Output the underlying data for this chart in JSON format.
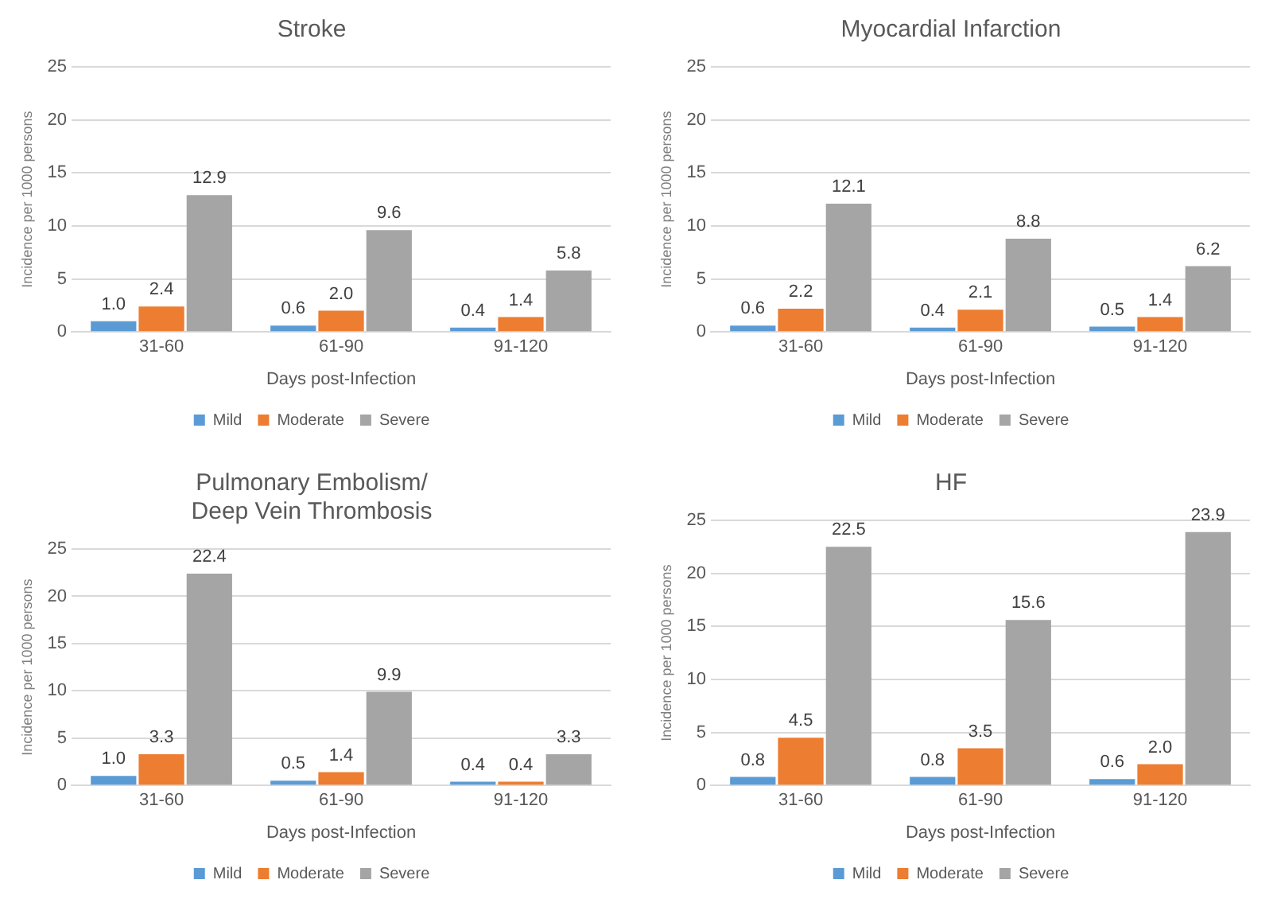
{
  "chart_data": [
    {
      "type": "bar",
      "title": "Stroke",
      "xlabel": "Days post-Infection",
      "ylabel": "Incidence per 1000 persons",
      "categories": [
        "31-60",
        "61-90",
        "91-120"
      ],
      "ylim": [
        0,
        25
      ],
      "yticks": [
        0,
        5,
        10,
        15,
        20,
        25
      ],
      "grid": "y",
      "legend": "bottom",
      "series": [
        {
          "name": "Mild",
          "color": "#5b9bd5",
          "values": [
            1.0,
            0.6,
            0.4
          ],
          "value_labels": [
            "1.0",
            "0.6",
            "0.4"
          ]
        },
        {
          "name": "Moderate",
          "color": "#ed7d31",
          "values": [
            2.4,
            2.0,
            1.4
          ],
          "value_labels": [
            "2.4",
            "2.0",
            "1.4"
          ]
        },
        {
          "name": "Severe",
          "color": "#a5a5a5",
          "values": [
            12.9,
            9.6,
            5.8
          ],
          "value_labels": [
            "12.9",
            "9.6",
            "5.8"
          ]
        }
      ]
    },
    {
      "type": "bar",
      "title": "Myocardial Infarction",
      "xlabel": "Days post-Infection",
      "ylabel": "Incidence per 1000 persons",
      "categories": [
        "31-60",
        "61-90",
        "91-120"
      ],
      "ylim": [
        0,
        25
      ],
      "yticks": [
        0,
        5,
        10,
        15,
        20,
        25
      ],
      "grid": "y",
      "legend": "bottom",
      "series": [
        {
          "name": "Mild",
          "color": "#5b9bd5",
          "values": [
            0.6,
            0.4,
            0.5
          ],
          "value_labels": [
            "0.6",
            "0.4",
            "0.5"
          ]
        },
        {
          "name": "Moderate",
          "color": "#ed7d31",
          "values": [
            2.2,
            2.1,
            1.4
          ],
          "value_labels": [
            "2.2",
            "2.1",
            "1.4"
          ]
        },
        {
          "name": "Severe",
          "color": "#a5a5a5",
          "values": [
            12.1,
            8.8,
            6.2
          ],
          "value_labels": [
            "12.1",
            "8.8",
            "6.2"
          ]
        }
      ]
    },
    {
      "type": "bar",
      "title": "Pulmonary Embolism/\nDeep Vein Thrombosis",
      "xlabel": "Days post-Infection",
      "ylabel": "Incidence per 1000 persons",
      "categories": [
        "31-60",
        "61-90",
        "91-120"
      ],
      "ylim": [
        0,
        25
      ],
      "yticks": [
        0,
        5,
        10,
        15,
        20,
        25
      ],
      "grid": "y",
      "legend": "bottom",
      "series": [
        {
          "name": "Mild",
          "color": "#5b9bd5",
          "values": [
            1.0,
            0.5,
            0.4
          ],
          "value_labels": [
            "1.0",
            "0.5",
            "0.4"
          ]
        },
        {
          "name": "Moderate",
          "color": "#ed7d31",
          "values": [
            3.3,
            1.4,
            0.4
          ],
          "value_labels": [
            "3.3",
            "1.4",
            "0.4"
          ]
        },
        {
          "name": "Severe",
          "color": "#a5a5a5",
          "values": [
            22.4,
            9.9,
            3.3
          ],
          "value_labels": [
            "22.4",
            "9.9",
            "3.3"
          ]
        }
      ]
    },
    {
      "type": "bar",
      "title": "HF",
      "xlabel": "Days post-Infection",
      "ylabel": "Incidence per 1000 persons",
      "categories": [
        "31-60",
        "61-90",
        "91-120"
      ],
      "ylim": [
        0,
        25
      ],
      "yticks": [
        0,
        5,
        10,
        15,
        20,
        25
      ],
      "grid": "y",
      "legend": "bottom",
      "series": [
        {
          "name": "Mild",
          "color": "#5b9bd5",
          "values": [
            0.8,
            0.8,
            0.6
          ],
          "value_labels": [
            "0.8",
            "0.8",
            "0.6"
          ]
        },
        {
          "name": "Moderate",
          "color": "#ed7d31",
          "values": [
            4.5,
            3.5,
            2.0
          ],
          "value_labels": [
            "4.5",
            "3.5",
            "2.0"
          ]
        },
        {
          "name": "Severe",
          "color": "#a5a5a5",
          "values": [
            22.5,
            15.6,
            23.9
          ],
          "value_labels": [
            "22.5",
            "15.6",
            "23.9"
          ]
        }
      ]
    }
  ]
}
